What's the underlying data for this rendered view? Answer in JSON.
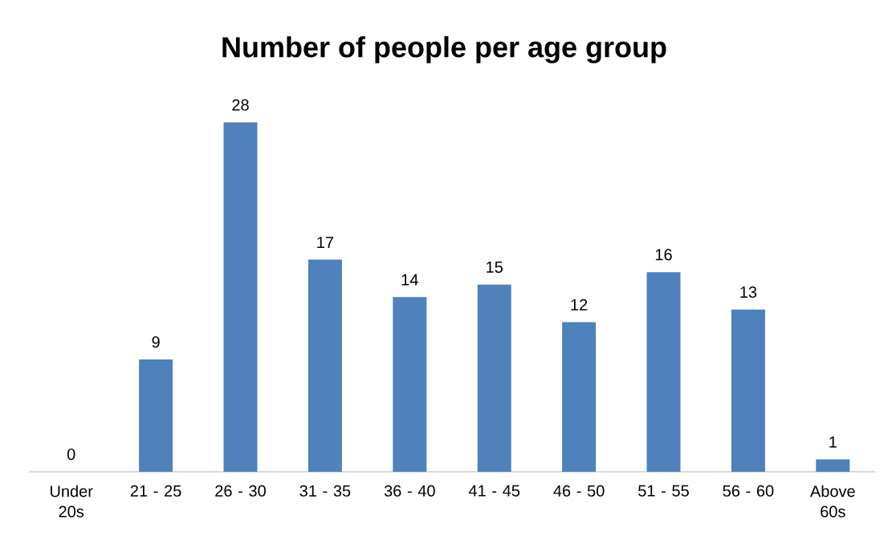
{
  "chart_data": {
    "type": "bar",
    "title": "Number of people per age group",
    "categories": [
      "Under 20s",
      "21 - 25",
      "26 - 30",
      "31 - 35",
      "36 - 40",
      "41 - 45",
      "46 - 50",
      "51 - 55",
      "56 - 60",
      "Above 60s"
    ],
    "values": [
      0,
      9,
      28,
      17,
      14,
      15,
      12,
      16,
      13,
      1
    ],
    "color": "#4f81bd",
    "data_labels": true
  }
}
